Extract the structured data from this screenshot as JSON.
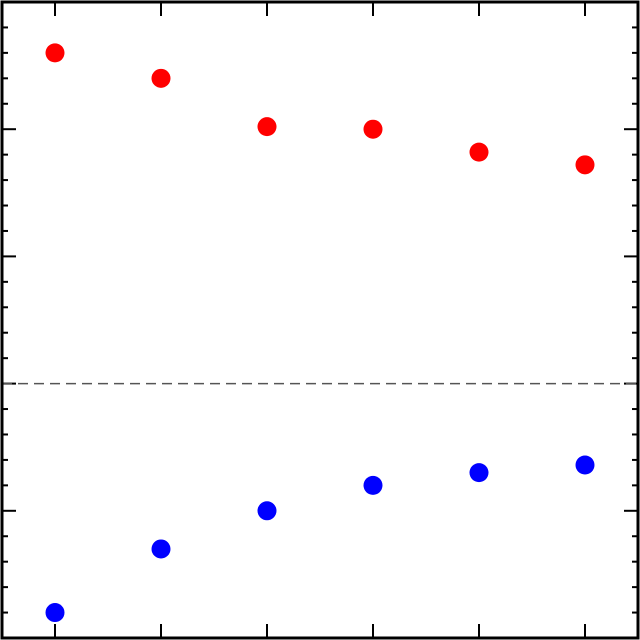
{
  "chart_data": {
    "type": "scatter",
    "title": "",
    "xlabel": "",
    "ylabel": "",
    "x": [
      1,
      2,
      3,
      4,
      5,
      6
    ],
    "xlim": [
      0.5,
      6.5
    ],
    "ylim": [
      -1.0,
      1.5
    ],
    "grid": false,
    "legend": "none",
    "reference_line": {
      "y": 0,
      "style": "dashed",
      "color": "#555555"
    },
    "series": [
      {
        "color": "#ff0000",
        "values": [
          1.3,
          1.2,
          1.01,
          1.0,
          0.91,
          0.86
        ]
      },
      {
        "color": "#0000ff",
        "values": [
          -0.9,
          -0.65,
          -0.5,
          -0.4,
          -0.35,
          -0.32
        ]
      }
    ]
  }
}
